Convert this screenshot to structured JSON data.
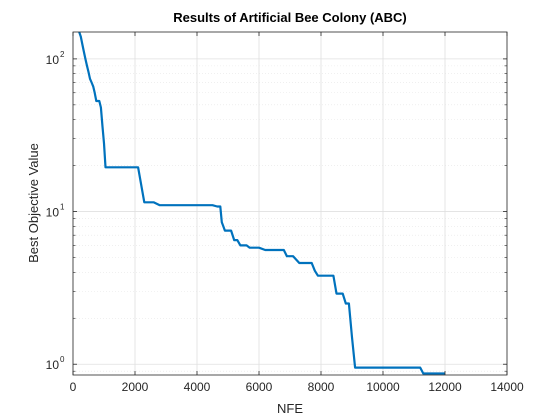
{
  "chart_data": {
    "type": "line",
    "title": "Results of Artificial Bee Colony (ABC)",
    "xlabel": "NFE",
    "ylabel": "Best Objective Value",
    "xlim": [
      0,
      14000
    ],
    "ylim": [
      0.85,
      150
    ],
    "yscale": "log",
    "grid": true,
    "minor_grid": true,
    "box": true,
    "x_ticks": [
      0,
      2000,
      4000,
      6000,
      8000,
      10000,
      12000,
      14000
    ],
    "x_tick_labels": [
      "0",
      "2000",
      "4000",
      "6000",
      "8000",
      "10000",
      "12000",
      "14000"
    ],
    "y_ticks": [
      1,
      10,
      100
    ],
    "y_tick_bases": [
      "10",
      "10",
      "10"
    ],
    "y_tick_exponents": [
      "0",
      "1",
      "2"
    ],
    "series": [
      {
        "color": "#0072BD",
        "x": [
          200,
          250,
          300,
          350,
          400,
          450,
          500,
          550,
          600,
          650,
          700,
          750,
          800,
          850,
          900,
          950,
          1000,
          1050,
          1100,
          1150,
          1200,
          1300,
          1500,
          1800,
          2100,
          2300,
          2400,
          2500,
          2600,
          2800,
          3000,
          3500,
          4000,
          4500,
          4650,
          4700,
          4750,
          4800,
          4850,
          4900,
          5000,
          5100,
          5200,
          5300,
          5400,
          5500,
          5600,
          5700,
          5800,
          6000,
          6200,
          6300,
          6500,
          6800,
          6900,
          7100,
          7300,
          7500,
          7700,
          7800,
          7900,
          8100,
          8300,
          8400,
          8500,
          8600,
          8700,
          8800,
          8900,
          9000,
          9100,
          9200,
          9400,
          10000,
          11000,
          11200,
          11300,
          11500,
          12000
        ],
        "y": [
          150,
          140,
          125,
          112,
          100,
          90,
          82,
          74,
          70,
          66,
          60,
          53,
          53,
          53,
          48,
          36,
          28,
          19.5,
          19.5,
          19.5,
          19.5,
          19.5,
          19.5,
          19.5,
          19.5,
          11.5,
          11.5,
          11.5,
          11.5,
          11,
          11,
          11,
          11,
          11,
          10.8,
          10.8,
          10.8,
          8.5,
          8,
          7.5,
          7.5,
          7.5,
          6.5,
          6.5,
          6,
          6,
          6,
          5.8,
          5.8,
          5.8,
          5.6,
          5.6,
          5.6,
          5.6,
          5.1,
          5.1,
          4.6,
          4.6,
          4.6,
          4.1,
          3.8,
          3.8,
          3.8,
          3.8,
          2.9,
          2.9,
          2.9,
          2.5,
          2.5,
          1.5,
          0.95,
          0.95,
          0.95,
          0.95,
          0.95,
          0.95,
          0.87,
          0.87,
          0.87
        ]
      }
    ]
  }
}
